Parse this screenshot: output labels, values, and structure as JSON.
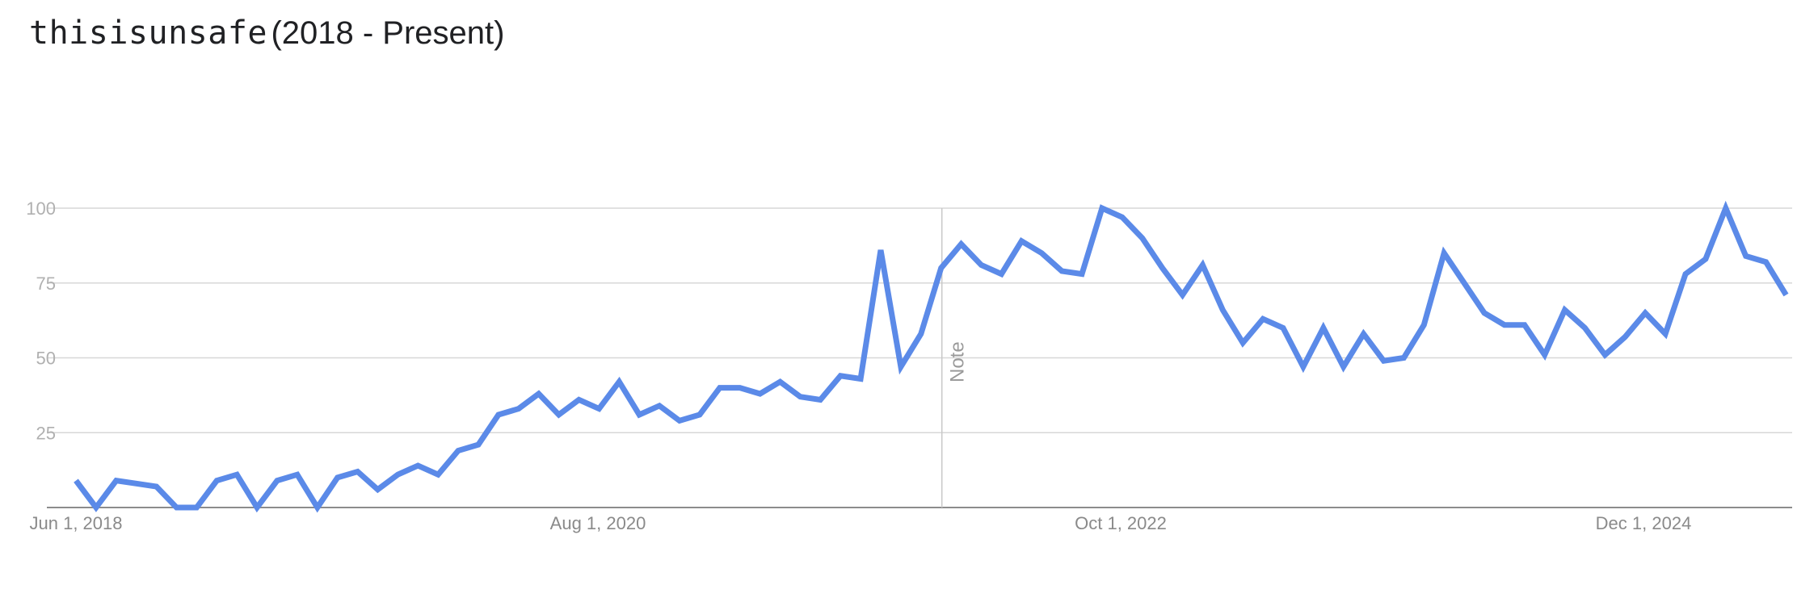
{
  "header": {
    "term": "thisisunsafe",
    "range": "(2018 - Present)"
  },
  "colors": {
    "series": "#5b8ae8",
    "grid": "#d7d7d7",
    "axis": "#8c8c8c",
    "note_line": "#c8c8c8"
  },
  "chart_data": {
    "type": "line",
    "title": "thisisunsafe (2018 - Present)",
    "xlabel": "",
    "ylabel": "",
    "ylim": [
      0,
      100
    ],
    "yticks": [
      "100",
      "75",
      "50",
      "25"
    ],
    "ytick_values": [
      100,
      75,
      50,
      25
    ],
    "xticks": [
      "Jun 1, 2018",
      "Aug 1, 2020",
      "Oct 1, 2022",
      "Dec 1, 2024"
    ],
    "grid": true,
    "legend": "none",
    "annotation": {
      "label": "Note",
      "index": 43
    },
    "series": [
      {
        "values": [
          9,
          0,
          9,
          8,
          7,
          0,
          0,
          9,
          11,
          0,
          9,
          11,
          0,
          10,
          12,
          6,
          11,
          14,
          11,
          19,
          21,
          31,
          33,
          38,
          31,
          36,
          33,
          42,
          31,
          34,
          29,
          31,
          40,
          40,
          38,
          42,
          37,
          36,
          44,
          43,
          86,
          47,
          58,
          80,
          88,
          81,
          78,
          89,
          85,
          79,
          78,
          100,
          97,
          90,
          80,
          71,
          81,
          66,
          55,
          63,
          60,
          47,
          60,
          47,
          58,
          49,
          50,
          61,
          85,
          75,
          65,
          61,
          61,
          51,
          66,
          60,
          51,
          57,
          65,
          58,
          78,
          83,
          100,
          84,
          82,
          71
        ]
      }
    ]
  }
}
